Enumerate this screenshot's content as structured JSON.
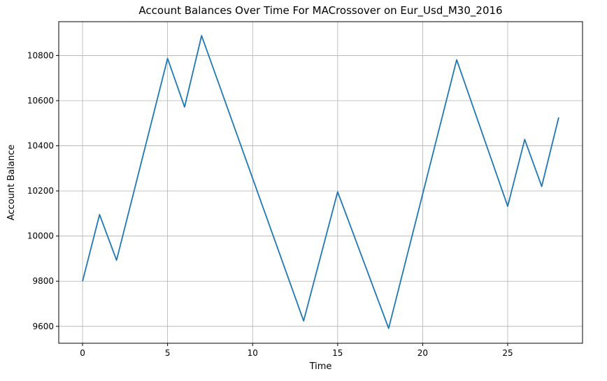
{
  "chart_data": {
    "type": "line",
    "title": "Account Balances Over Time For MACrossover on Eur_Usd_M30_2016",
    "xlabel": "Time",
    "ylabel": "Account Balance",
    "xlim": [
      -1.4,
      29.4
    ],
    "ylim": [
      9525,
      10950
    ],
    "xticks": [
      0,
      5,
      10,
      15,
      20,
      25
    ],
    "yticks": [
      9600,
      9800,
      10000,
      10200,
      10400,
      10600,
      10800
    ],
    "grid": true,
    "series": [
      {
        "color": "#1f77b4",
        "x": [
          0,
          1,
          2,
          5,
          6,
          7,
          13,
          15,
          18,
          22,
          25,
          26,
          27,
          28
        ],
        "y": [
          9800,
          10095,
          9893,
          10787,
          10572,
          10888,
          9624,
          10196,
          9591,
          10781,
          10132,
          10428,
          10220,
          10526
        ]
      }
    ]
  }
}
